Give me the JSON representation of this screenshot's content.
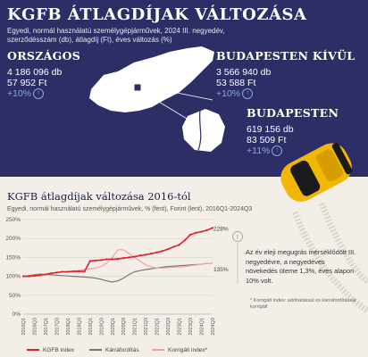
{
  "header": {
    "title": "KGFB ÁTLAGDÍJAK VÁLTOZÁSA",
    "subtitle": "Egyedi, normál használatú személygépjárművek, 2024 III. negyedév, szerződésszám (db), átlagdíj (Ft), éves változás (%)"
  },
  "stats": {
    "country": {
      "label": "ORSZÁGOS",
      "count": "4 186 096 db",
      "avg": "57 952 Ft",
      "change": "+10%"
    },
    "outside": {
      "label": "BUDAPESTEN KÍVÜL",
      "count": "3 566 940 db",
      "avg": "53 588 Ft",
      "change": "+10%"
    },
    "budapest": {
      "label": "BUDAPESTEN",
      "count": "619 156 db",
      "avg": "83 509 Ft",
      "change": "+11%"
    }
  },
  "colors": {
    "navy": "#2e2e66",
    "red": "#e0202a",
    "gray": "#777777",
    "pink": "#f2a0a4",
    "yellow": "#f2b705"
  },
  "note": {
    "text": "Az év eleji megugrás mérséklődött III. negyedévre, a negyedéves növekedés üteme 1,3%, éves alapon 10% volt.",
    "footnote": "* Korrigált index: adóhatással és kárráfordítással korrigált"
  },
  "chart_data": {
    "type": "line",
    "title": "KGFB átlagdíjak változása 2016-tól",
    "subtitle": "Egyedi, normál használatú személygépjárművek, % (fent), Forint (lent), 2016Q1-2024Q3",
    "ylim": [
      0,
      250
    ],
    "yticks": [
      "0%",
      "50%",
      "100%",
      "150%",
      "200%",
      "250%"
    ],
    "x": [
      "2016Q1",
      "2016Q2",
      "2016Q3",
      "2016Q4",
      "2017Q1",
      "2017Q2",
      "2017Q3",
      "2017Q4",
      "2018Q1",
      "2018Q2",
      "2018Q3",
      "2018Q4",
      "2019Q1",
      "2019Q2",
      "2019Q3",
      "2019Q4",
      "2020Q1",
      "2020Q2",
      "2020Q3",
      "2020Q4",
      "2021Q1",
      "2021Q2",
      "2021Q3",
      "2021Q4",
      "2022Q1",
      "2022Q2",
      "2022Q3",
      "2022Q4",
      "2023Q1",
      "2023Q2",
      "2023Q3",
      "2023Q4",
      "2024Q1",
      "2024Q2",
      "2024Q3"
    ],
    "xtick_labels": [
      "2016Q1",
      "2016Q3",
      "2017Q1",
      "2017Q3",
      "2018Q1",
      "2018Q3",
      "2019Q1",
      "2019Q3",
      "2020Q1",
      "2020Q3",
      "2021Q1",
      "2021Q3",
      "2022Q1",
      "2022Q3",
      "2023Q1",
      "2023Q3",
      "2024Q1",
      "2024Q3"
    ],
    "series": [
      {
        "name": "KGFB index",
        "color": "#e0202a",
        "values": [
          100,
          100,
          101,
          103,
          105,
          108,
          110,
          112,
          112,
          113,
          113,
          113,
          140,
          142,
          143,
          145,
          145,
          146,
          148,
          150,
          152,
          155,
          157,
          160,
          163,
          167,
          172,
          178,
          183,
          195,
          210,
          215,
          218,
          222,
          228
        ]
      },
      {
        "name": "Kárráfordítás",
        "color": "#777777",
        "values": [
          100,
          102,
          104,
          106,
          105,
          104,
          103,
          102,
          101,
          100,
          99,
          98,
          97,
          95,
          92,
          88,
          85,
          88,
          95,
          105,
          112,
          115,
          118,
          120,
          122,
          124,
          126,
          127,
          128,
          129,
          130,
          131,
          132,
          134,
          135
        ]
      },
      {
        "name": "Korrigált index*",
        "color": "#f2a0a4",
        "values": [
          100,
          101,
          102,
          104,
          106,
          108,
          110,
          111,
          112,
          114,
          116,
          118,
          120,
          122,
          126,
          135,
          150,
          170,
          170,
          160,
          150,
          140,
          130,
          125,
          122,
          122,
          123,
          124,
          125,
          126,
          128,
          130,
          132,
          134,
          135
        ]
      }
    ],
    "end_labels": [
      "228%",
      "135%"
    ],
    "legend_position": "bottom"
  }
}
